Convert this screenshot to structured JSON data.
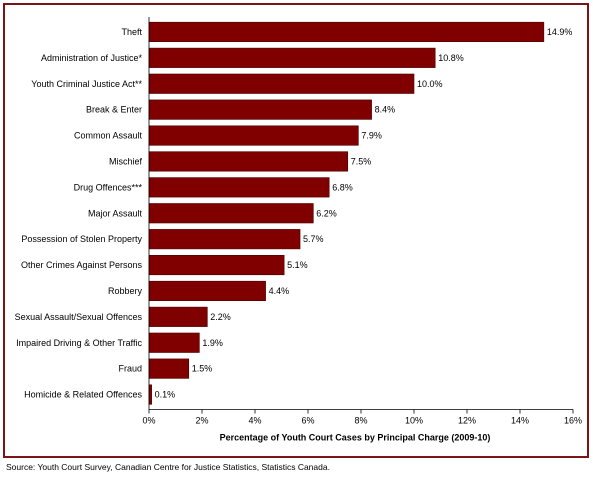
{
  "chart_data": {
    "type": "bar",
    "orientation": "horizontal",
    "categories": [
      "Theft",
      "Administration of Justice*",
      "Youth Criminal Justice Act**",
      "Break & Enter",
      "Common Assault",
      "Mischief",
      "Drug Offences***",
      "Major Assault",
      "Possession of Stolen Property",
      "Other Crimes Against Persons",
      "Robbery",
      "Sexual Assault/Sexual Offences",
      "Impaired Driving & Other Traffic",
      "Fraud",
      "Homicide & Related Offences"
    ],
    "values": [
      14.9,
      10.8,
      10.0,
      8.4,
      7.9,
      7.5,
      6.8,
      6.2,
      5.7,
      5.1,
      4.4,
      2.2,
      1.9,
      1.5,
      0.1
    ],
    "data_labels": [
      "14.9%",
      "10.8%",
      "10.0%",
      "8.4%",
      "7.9%",
      "7.5%",
      "6.8%",
      "6.2%",
      "5.7%",
      "5.1%",
      "4.4%",
      "2.2%",
      "1.9%",
      "1.5%",
      "0.1%"
    ],
    "xlim": [
      0,
      16
    ],
    "x_ticks": [
      0,
      2,
      4,
      6,
      8,
      10,
      12,
      14,
      16
    ],
    "x_tick_labels": [
      "0%",
      "2%",
      "4%",
      "6%",
      "8%",
      "10%",
      "12%",
      "14%",
      "16%"
    ],
    "xlabel": "Percentage of Youth Court Cases by Principal Charge (2009-10)",
    "ylabel": "",
    "title": "",
    "grid": false,
    "legend": "none",
    "bar_color": "#800000",
    "border_color": "#7b1416"
  },
  "source": "Source:  Youth Court Survey, Canadian Centre for Justice Statistics, Statistics Canada."
}
